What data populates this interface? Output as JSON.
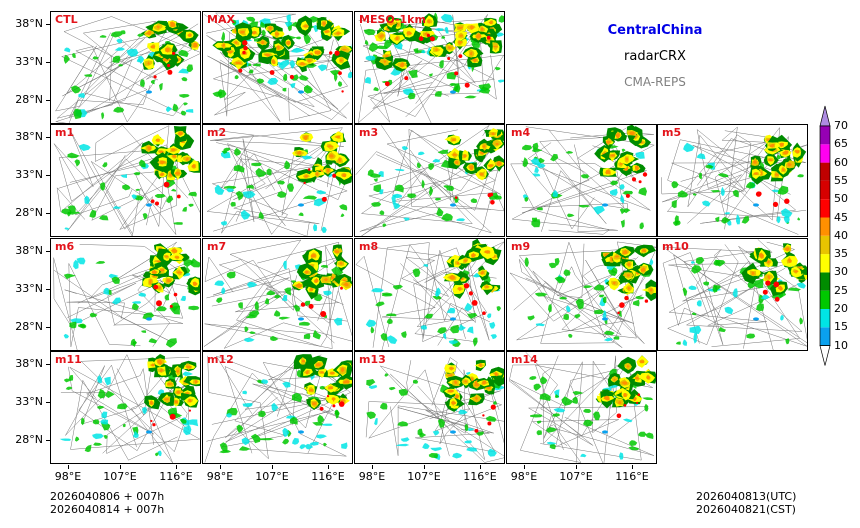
{
  "header": {
    "region": "CentralChina",
    "variable": "radarCRX",
    "system": "CMA-REPS"
  },
  "panels": [
    "CTL",
    "MAX",
    "MESO-1km",
    "m1",
    "m2",
    "m3",
    "m4",
    "m5",
    "m6",
    "m7",
    "m8",
    "m9",
    "m10",
    "m11",
    "m12",
    "m13",
    "m14"
  ],
  "axes": {
    "lat_labels": [
      "38°N",
      "33°N",
      "28°N"
    ],
    "lon_labels": [
      "98°E",
      "107°E",
      "116°E"
    ]
  },
  "colorbar": {
    "levels": [
      "10",
      "15",
      "20",
      "25",
      "30",
      "35",
      "40",
      "45",
      "50",
      "55",
      "60",
      "65",
      "70"
    ],
    "colors": [
      "#0aa1ee",
      "#00e5e5",
      "#00c800",
      "#008c00",
      "#ffff00",
      "#e8c400",
      "#ff9000",
      "#ff0000",
      "#d60000",
      "#c00000",
      "#ff00f0",
      "#9600b4",
      "#ae8ce2"
    ]
  },
  "footer": {
    "init_line1": "2026040806  +  007h",
    "init_line2": "2026040814  +  007h",
    "valid_utc": "2026040813(UTC)",
    "valid_cst": "2026040821(CST)"
  }
}
